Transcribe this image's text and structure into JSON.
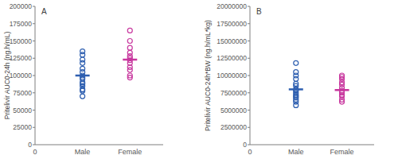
{
  "chart_data": [
    {
      "type": "scatter",
      "title": "A",
      "ylabel": "Pritelivir AUC0-24h (ng.h/mL)",
      "xlim": [
        0,
        2.7
      ],
      "xticks": [
        0,
        {
          "value": 1,
          "label": "Male"
        },
        {
          "value": 2,
          "label": "Female"
        }
      ],
      "ylim": [
        0,
        200000
      ],
      "yticks": [
        0,
        25000,
        50000,
        75000,
        100000,
        125000,
        150000,
        175000,
        200000
      ],
      "grid": false,
      "marker": "circle",
      "series": [
        {
          "name": "Male",
          "color": "#2e5fb0",
          "x": [
            1,
            1,
            1,
            1,
            1,
            1,
            1,
            1,
            1,
            1,
            1,
            1,
            1,
            1,
            1
          ],
          "values": [
            135000,
            130000,
            123000,
            118000,
            110000,
            105000,
            100000,
            97000,
            95000,
            90000,
            88000,
            85000,
            80000,
            78000,
            70000
          ],
          "mean": 100000
        },
        {
          "name": "Female",
          "color": "#c8379e",
          "x": [
            2,
            2,
            2,
            2,
            2,
            2,
            2,
            2,
            2,
            2,
            2,
            2
          ],
          "values": [
            165000,
            150000,
            140000,
            133000,
            128000,
            125000,
            122000,
            118000,
            112000,
            108000,
            100000,
            97000
          ],
          "mean": 123000
        }
      ]
    },
    {
      "type": "scatter",
      "title": "B",
      "ylabel": "Pritelivir AUC0-24h*BW (ng.h/mL*kg)",
      "xlim": [
        0,
        2.7
      ],
      "xticks": [
        0,
        {
          "value": 1,
          "label": "Male"
        },
        {
          "value": 2,
          "label": "Female"
        }
      ],
      "ylim": [
        0,
        20000000
      ],
      "yticks": [
        0,
        2500000,
        5000000,
        7500000,
        10000000,
        12500000,
        15000000,
        17500000,
        20000000
      ],
      "grid": false,
      "marker": "circle",
      "series": [
        {
          "name": "Male",
          "color": "#2e5fb0",
          "x": [
            1,
            1,
            1,
            1,
            1,
            1,
            1,
            1,
            1,
            1,
            1,
            1,
            1,
            1,
            1
          ],
          "values": [
            11800000,
            10500000,
            10000000,
            9500000,
            8800000,
            8500000,
            8000000,
            7800000,
            7500000,
            7200000,
            7000000,
            6800000,
            6500000,
            6200000,
            5700000
          ],
          "mean": 8000000
        },
        {
          "name": "Female",
          "color": "#c8379e",
          "x": [
            2,
            2,
            2,
            2,
            2,
            2,
            2,
            2,
            2,
            2,
            2,
            2
          ],
          "values": [
            10000000,
            9800000,
            9500000,
            9000000,
            8700000,
            8200000,
            7800000,
            7500000,
            7200000,
            7000000,
            6500000,
            6200000
          ],
          "mean": 7900000
        }
      ]
    }
  ]
}
